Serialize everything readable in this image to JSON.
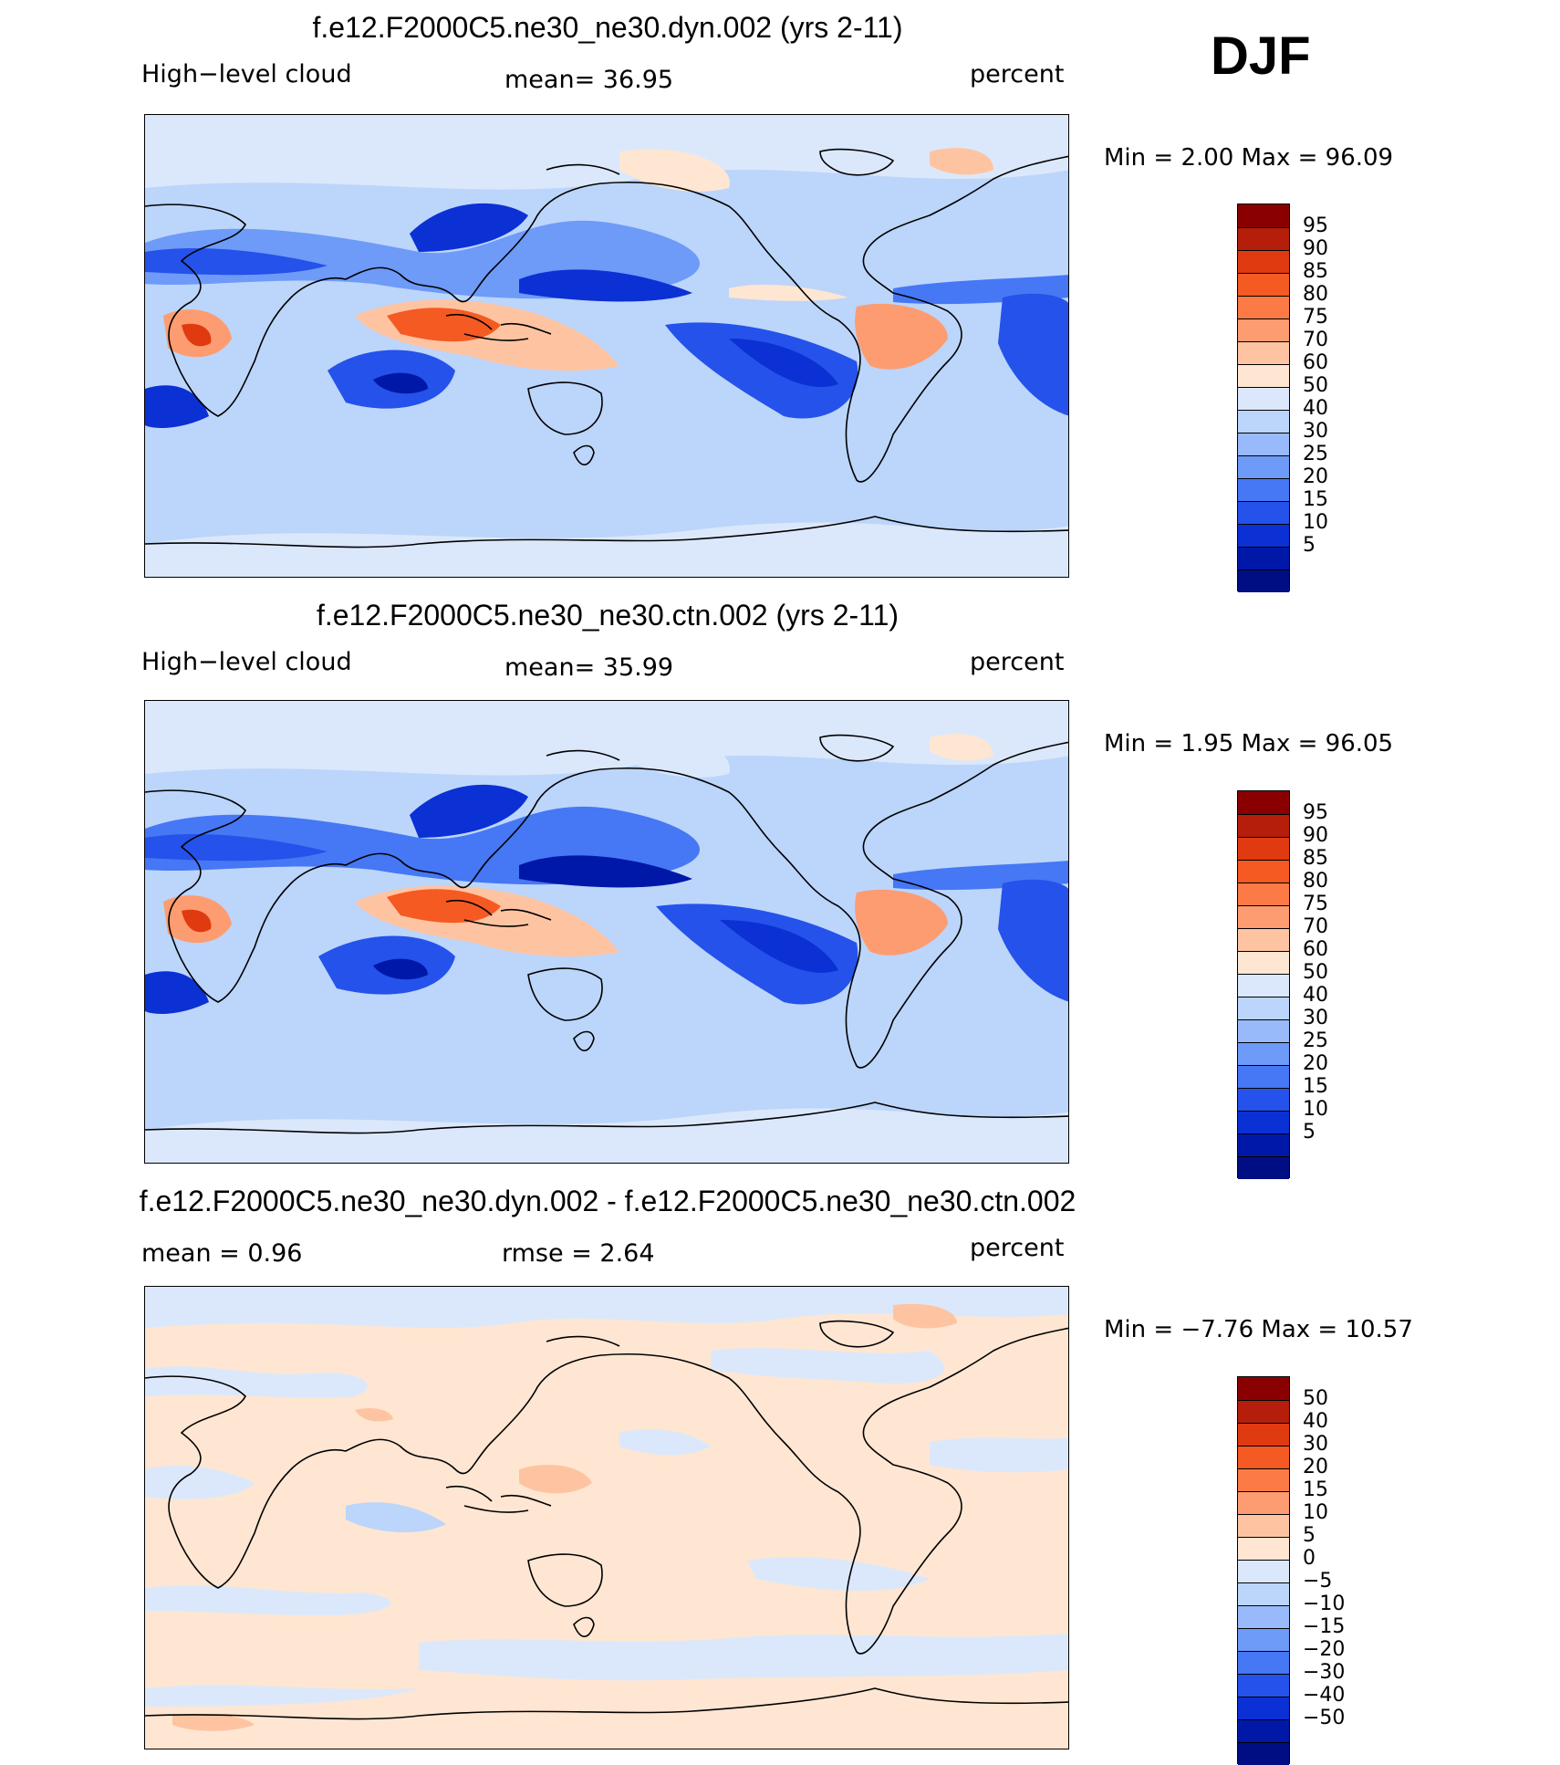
{
  "season": "DJF",
  "panels": [
    {
      "title": "f.e12.F2000C5.ne30_ne30.dyn.002 (yrs 2-11)",
      "left_label": "High−level cloud",
      "center_label": "mean=   36.95",
      "units": "percent",
      "minmax": "Min =     2.00  Max =    96.09",
      "colorbar": {
        "colors": [
          "#8a0000",
          "#b51e0a",
          "#e03a10",
          "#f55a22",
          "#fb7a45",
          "#fd9c70",
          "#fec4a2",
          "#fee6d2",
          "#dbe8fb",
          "#bcd5fb",
          "#98bafa",
          "#6e9af8",
          "#4677f5",
          "#2452ea",
          "#0b30d4",
          "#0018a8",
          "#000e84"
        ],
        "labels": [
          "95",
          "90",
          "85",
          "80",
          "75",
          "70",
          "60",
          "50",
          "40",
          "30",
          "25",
          "20",
          "15",
          "10",
          "5"
        ]
      }
    },
    {
      "title": "f.e12.F2000C5.ne30_ne30.ctn.002 (yrs 2-11)",
      "left_label": "High−level cloud",
      "center_label": "mean=   35.99",
      "units": "percent",
      "minmax": "Min =     1.95  Max =    96.05",
      "colorbar": {
        "colors": [
          "#8a0000",
          "#b51e0a",
          "#e03a10",
          "#f55a22",
          "#fb7a45",
          "#fd9c70",
          "#fec4a2",
          "#fee6d2",
          "#dbe8fb",
          "#bcd5fb",
          "#98bafa",
          "#6e9af8",
          "#4677f5",
          "#2452ea",
          "#0b30d4",
          "#0018a8",
          "#000e84"
        ],
        "labels": [
          "95",
          "90",
          "85",
          "80",
          "75",
          "70",
          "60",
          "50",
          "40",
          "30",
          "25",
          "20",
          "15",
          "10",
          "5"
        ]
      }
    },
    {
      "title": "f.e12.F2000C5.ne30_ne30.dyn.002 - f.e12.F2000C5.ne30_ne30.ctn.002",
      "left_label": "mean =     0.96",
      "center_label": "rmse =     2.64",
      "units": "percent",
      "minmax": "Min =   −7.76  Max =    10.57",
      "colorbar": {
        "colors": [
          "#8a0000",
          "#b51e0a",
          "#e03a10",
          "#f55a22",
          "#fb7a45",
          "#fd9c70",
          "#fec4a2",
          "#fee6d2",
          "#dbe8fb",
          "#bcd5fb",
          "#98bafa",
          "#6e9af8",
          "#4677f5",
          "#2452ea",
          "#0b30d4",
          "#0018a8",
          "#000e84"
        ],
        "labels": [
          "50",
          "40",
          "30",
          "20",
          "15",
          "10",
          "5",
          "0",
          "−5",
          "−10",
          "−15",
          "−20",
          "−30",
          "−40",
          "−50"
        ]
      }
    }
  ]
}
